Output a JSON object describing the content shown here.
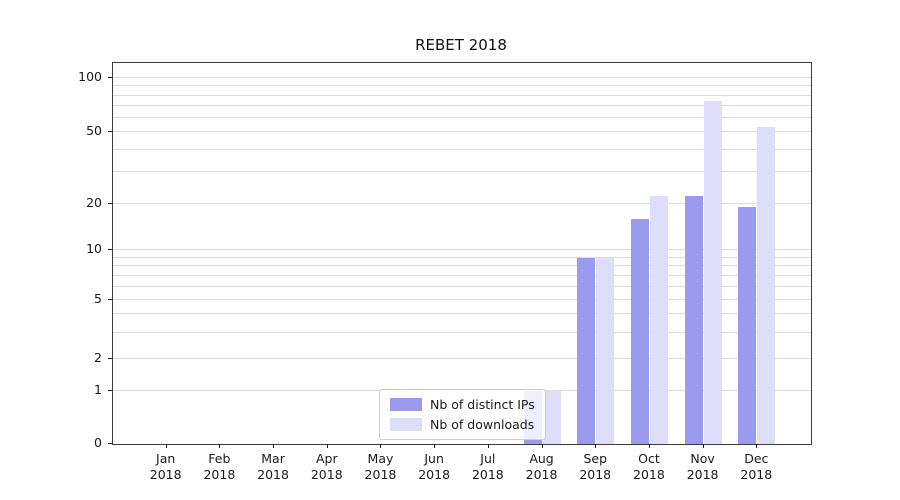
{
  "chart_data": {
    "type": "bar",
    "title": "REBET 2018",
    "categories": [
      "Jan 2018",
      "Feb 2018",
      "Mar 2018",
      "Apr 2018",
      "May 2018",
      "Jun 2018",
      "Jul 2018",
      "Aug 2018",
      "Sep 2018",
      "Oct 2018",
      "Nov 2018",
      "Dec 2018"
    ],
    "series": [
      {
        "name": "Nb of distinct IPs",
        "color": "#9a9aef",
        "values": [
          0,
          0,
          0,
          0,
          0,
          0,
          0,
          1,
          9,
          16,
          22,
          19
        ]
      },
      {
        "name": "Nb of downloads",
        "color": "#dedefb",
        "values": [
          0,
          0,
          0,
          0,
          0,
          0,
          0,
          1,
          9,
          22,
          75,
          53
        ]
      }
    ],
    "yticks": [
      0,
      1,
      2,
      5,
      10,
      20,
      50,
      100
    ],
    "ylabel": "",
    "xlabel": "",
    "scale": "symlog",
    "ylim": [
      0,
      115
    ],
    "grid": true,
    "legend_position": "lower center"
  }
}
